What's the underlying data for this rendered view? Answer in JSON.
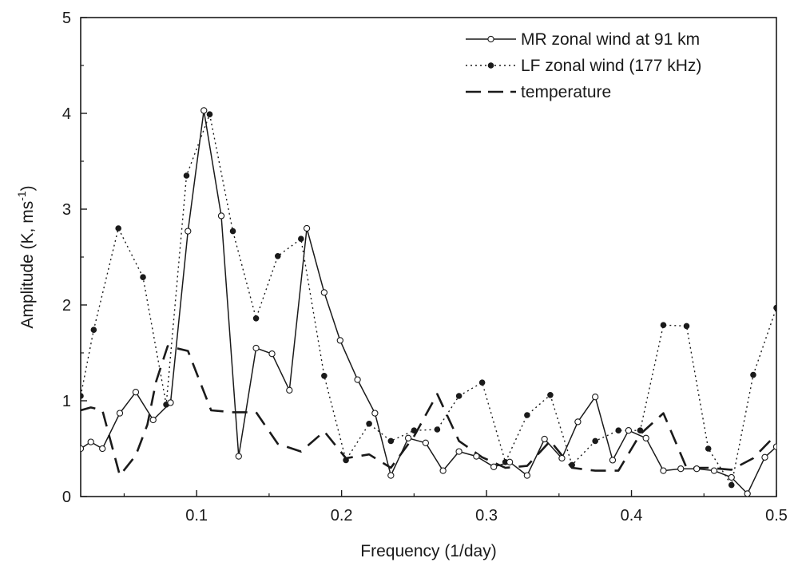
{
  "chart_data": {
    "type": "line",
    "xlabel": "Frequency (1/day)",
    "ylabel_main": "Amplitude (K, ms",
    "ylabel_sup": "-1",
    "ylabel_close": ")",
    "xlim": [
      0.02,
      0.5
    ],
    "ylim": [
      0,
      5
    ],
    "xticks": [
      0.1,
      0.2,
      0.3,
      0.4,
      0.5
    ],
    "xtick_labels": [
      "0.1",
      "0.2",
      "0.3",
      "0.4",
      "0.5"
    ],
    "yticks": [
      0,
      1,
      2,
      3,
      4,
      5
    ],
    "ytick_labels": [
      "0",
      "1",
      "2",
      "3",
      "4",
      "5"
    ],
    "grid": false,
    "legend_position": "top-right",
    "series": [
      {
        "name": "MR zonal wind at 91 km",
        "style": "solid-open-circle",
        "color": "#1a1a1a",
        "x": [
          0.02,
          0.027,
          0.035,
          0.047,
          0.058,
          0.07,
          0.082,
          0.094,
          0.105,
          0.117,
          0.129,
          0.141,
          0.152,
          0.164,
          0.176,
          0.188,
          0.199,
          0.211,
          0.223,
          0.234,
          0.246,
          0.258,
          0.27,
          0.281,
          0.293,
          0.305,
          0.316,
          0.328,
          0.34,
          0.352,
          0.363,
          0.375,
          0.387,
          0.398,
          0.41,
          0.422,
          0.434,
          0.445,
          0.457,
          0.469,
          0.48,
          0.492,
          0.5
        ],
        "y": [
          0.5,
          0.57,
          0.5,
          0.87,
          1.09,
          0.8,
          0.98,
          2.77,
          4.03,
          2.93,
          0.42,
          1.55,
          1.49,
          1.11,
          2.8,
          2.13,
          1.63,
          1.22,
          0.87,
          0.22,
          0.61,
          0.56,
          0.27,
          0.47,
          0.42,
          0.31,
          0.36,
          0.22,
          0.6,
          0.4,
          0.78,
          1.04,
          0.38,
          0.69,
          0.61,
          0.27,
          0.29,
          0.29,
          0.27,
          0.2,
          0.03,
          0.41,
          0.52
        ]
      },
      {
        "name": "LF zonal wind (177 kHz)",
        "style": "dotted-filled-circle",
        "color": "#1a1a1a",
        "x": [
          0.02,
          0.029,
          0.046,
          0.063,
          0.079,
          0.093,
          0.109,
          0.125,
          0.141,
          0.156,
          0.172,
          0.188,
          0.203,
          0.219,
          0.234,
          0.25,
          0.266,
          0.281,
          0.297,
          0.313,
          0.328,
          0.344,
          0.359,
          0.375,
          0.391,
          0.406,
          0.422,
          0.438,
          0.453,
          0.469,
          0.484,
          0.5
        ],
        "y": [
          1.05,
          1.74,
          2.8,
          2.29,
          0.96,
          3.35,
          3.99,
          2.77,
          1.86,
          2.51,
          2.69,
          1.26,
          0.38,
          0.76,
          0.58,
          0.69,
          0.7,
          1.05,
          1.19,
          0.36,
          0.85,
          1.06,
          0.33,
          0.58,
          0.69,
          0.69,
          1.79,
          1.78,
          0.5,
          0.12,
          1.27,
          1.97
        ]
      },
      {
        "name": "temperature",
        "style": "dashed",
        "color": "#1a1a1a",
        "x": [
          0.02,
          0.027,
          0.035,
          0.047,
          0.058,
          0.066,
          0.072,
          0.08,
          0.094,
          0.11,
          0.125,
          0.141,
          0.156,
          0.172,
          0.188,
          0.203,
          0.219,
          0.234,
          0.25,
          0.266,
          0.281,
          0.297,
          0.313,
          0.328,
          0.344,
          0.359,
          0.375,
          0.391,
          0.406,
          0.422,
          0.438,
          0.453,
          0.469,
          0.484,
          0.5
        ],
        "y": [
          0.9,
          0.93,
          0.9,
          0.22,
          0.43,
          0.75,
          1.2,
          1.57,
          1.52,
          0.9,
          0.88,
          0.88,
          0.55,
          0.47,
          0.68,
          0.4,
          0.44,
          0.3,
          0.63,
          1.07,
          0.58,
          0.41,
          0.3,
          0.32,
          0.58,
          0.3,
          0.27,
          0.27,
          0.65,
          0.87,
          0.3,
          0.3,
          0.28,
          0.4,
          0.65
        ]
      }
    ]
  }
}
